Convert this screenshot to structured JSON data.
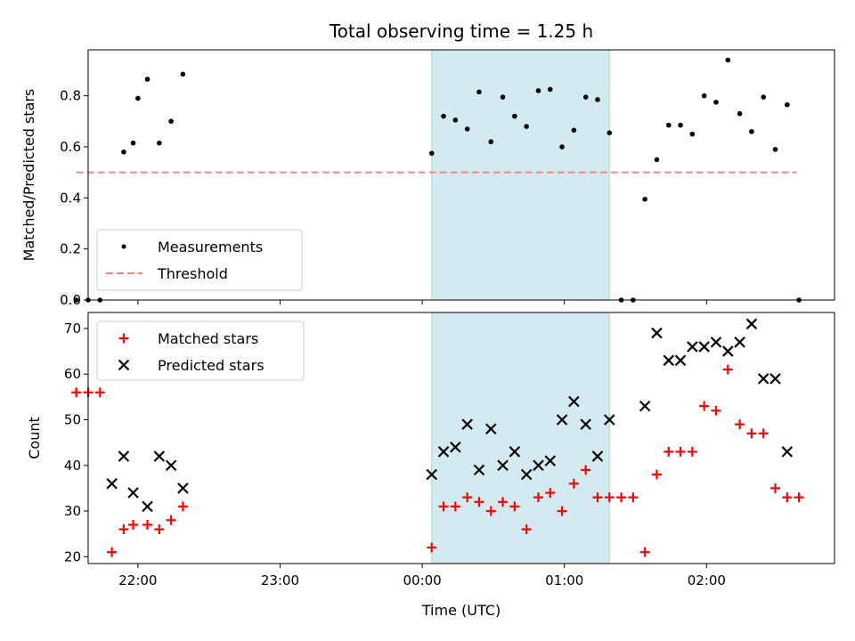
{
  "chart_data": [
    {
      "type": "scatter",
      "title": "Total observing time = 1.25 h",
      "xlabel": "",
      "ylabel": "Matched/Predicted stars",
      "ylim": [
        0,
        0.98
      ],
      "yticks": [
        "0.0",
        "0.2",
        "0.4",
        "0.6",
        "0.8"
      ],
      "ytick_values": [
        0.0,
        0.2,
        0.4,
        0.6,
        0.8
      ],
      "xlim": [
        "21:39",
        "02:54"
      ],
      "xticks": [
        "22:00",
        "23:00",
        "00:00",
        "01:00",
        "02:00"
      ],
      "shaded_interval": [
        "00:04",
        "01:19"
      ],
      "shade_color": "#d3eaf0",
      "grid": false,
      "legend_position": "lower-left",
      "series": [
        {
          "name": "Measurements",
          "marker": "dot",
          "color": "#000000",
          "x": [
            "21:54",
            "21:58",
            "22:00",
            "22:04",
            "22:09",
            "22:14",
            "22:19",
            "00:04",
            "00:09",
            "00:14",
            "00:19",
            "00:24",
            "00:29",
            "00:34",
            "00:39",
            "00:44",
            "00:49",
            "00:54",
            "00:59",
            "01:04",
            "01:09",
            "01:14",
            "01:19",
            "01:34",
            "01:39",
            "01:44",
            "01:49",
            "01:54",
            "01:59",
            "02:04",
            "02:09",
            "02:14",
            "02:19",
            "02:24",
            "02:29",
            "02:34",
            "21:34",
            "21:39",
            "21:44",
            "01:24",
            "01:29",
            "02:39"
          ],
          "y": [
            0.58,
            0.615,
            0.79,
            0.865,
            0.615,
            0.7,
            0.885,
            0.575,
            0.72,
            0.705,
            0.67,
            0.815,
            0.62,
            0.795,
            0.72,
            0.68,
            0.82,
            0.825,
            0.6,
            0.665,
            0.795,
            0.785,
            0.655,
            0.395,
            0.55,
            0.685,
            0.685,
            0.65,
            0.8,
            0.775,
            0.94,
            0.73,
            0.66,
            0.795,
            0.59,
            0.765,
            0.0,
            0.0,
            0.0,
            0.0,
            0.0,
            0.0
          ]
        },
        {
          "name": "Threshold",
          "marker": "dashed-line",
          "color": "#f08080",
          "x": [
            "21:34",
            "02:38"
          ],
          "y": [
            0.5,
            0.5
          ]
        }
      ]
    },
    {
      "type": "scatter",
      "title": "",
      "xlabel": "Time (UTC)",
      "ylabel": "Count",
      "ylim": [
        18.5,
        73.5
      ],
      "yticks": [
        "20",
        "30",
        "40",
        "50",
        "60",
        "70"
      ],
      "ytick_values": [
        20,
        30,
        40,
        50,
        60,
        70
      ],
      "xlim": [
        "21:39",
        "02:54"
      ],
      "xticks": [
        "22:00",
        "23:00",
        "00:00",
        "01:00",
        "02:00"
      ],
      "shaded_interval": [
        "00:04",
        "01:19"
      ],
      "shade_color": "#d3eaf0",
      "grid": false,
      "legend_position": "upper-left",
      "series": [
        {
          "name": "Matched stars",
          "marker": "plus",
          "color": "#ff0000",
          "x": [
            "21:34",
            "21:39",
            "21:44",
            "21:49",
            "21:54",
            "21:58",
            "22:04",
            "22:09",
            "22:14",
            "22:19",
            "00:04",
            "00:09",
            "00:14",
            "00:19",
            "00:24",
            "00:29",
            "00:34",
            "00:39",
            "00:44",
            "00:49",
            "00:54",
            "00:59",
            "01:04",
            "01:09",
            "01:14",
            "01:19",
            "01:24",
            "01:29",
            "01:34",
            "01:39",
            "01:44",
            "01:49",
            "01:54",
            "01:59",
            "02:04",
            "02:09",
            "02:14",
            "02:19",
            "02:24",
            "02:29",
            "02:34",
            "02:39"
          ],
          "y": [
            56,
            56,
            56,
            21,
            26,
            27,
            27,
            26,
            28,
            31,
            22,
            31,
            31,
            33,
            32,
            30,
            32,
            31,
            26,
            33,
            34,
            30,
            36,
            39,
            33,
            33,
            33,
            33,
            21,
            38,
            43,
            43,
            43,
            53,
            52,
            61,
            49,
            47,
            47,
            35,
            33,
            33
          ]
        },
        {
          "name": "Predicted stars",
          "marker": "x",
          "color": "#000000",
          "x": [
            "21:49",
            "21:54",
            "21:58",
            "22:04",
            "22:09",
            "22:14",
            "22:19",
            "00:04",
            "00:09",
            "00:14",
            "00:19",
            "00:24",
            "00:29",
            "00:34",
            "00:39",
            "00:44",
            "00:49",
            "00:54",
            "00:59",
            "01:04",
            "01:09",
            "01:14",
            "01:19",
            "01:34",
            "01:39",
            "01:44",
            "01:49",
            "01:54",
            "01:59",
            "02:04",
            "02:09",
            "02:14",
            "02:19",
            "02:24",
            "02:29",
            "02:34"
          ],
          "y": [
            36,
            42,
            34,
            31,
            42,
            40,
            35,
            38,
            43,
            44,
            49,
            39,
            48,
            40,
            43,
            38,
            40,
            41,
            50,
            54,
            49,
            42,
            50,
            53,
            69,
            63,
            63,
            66,
            66,
            67,
            65,
            67,
            71,
            59,
            59,
            43
          ]
        }
      ]
    }
  ]
}
